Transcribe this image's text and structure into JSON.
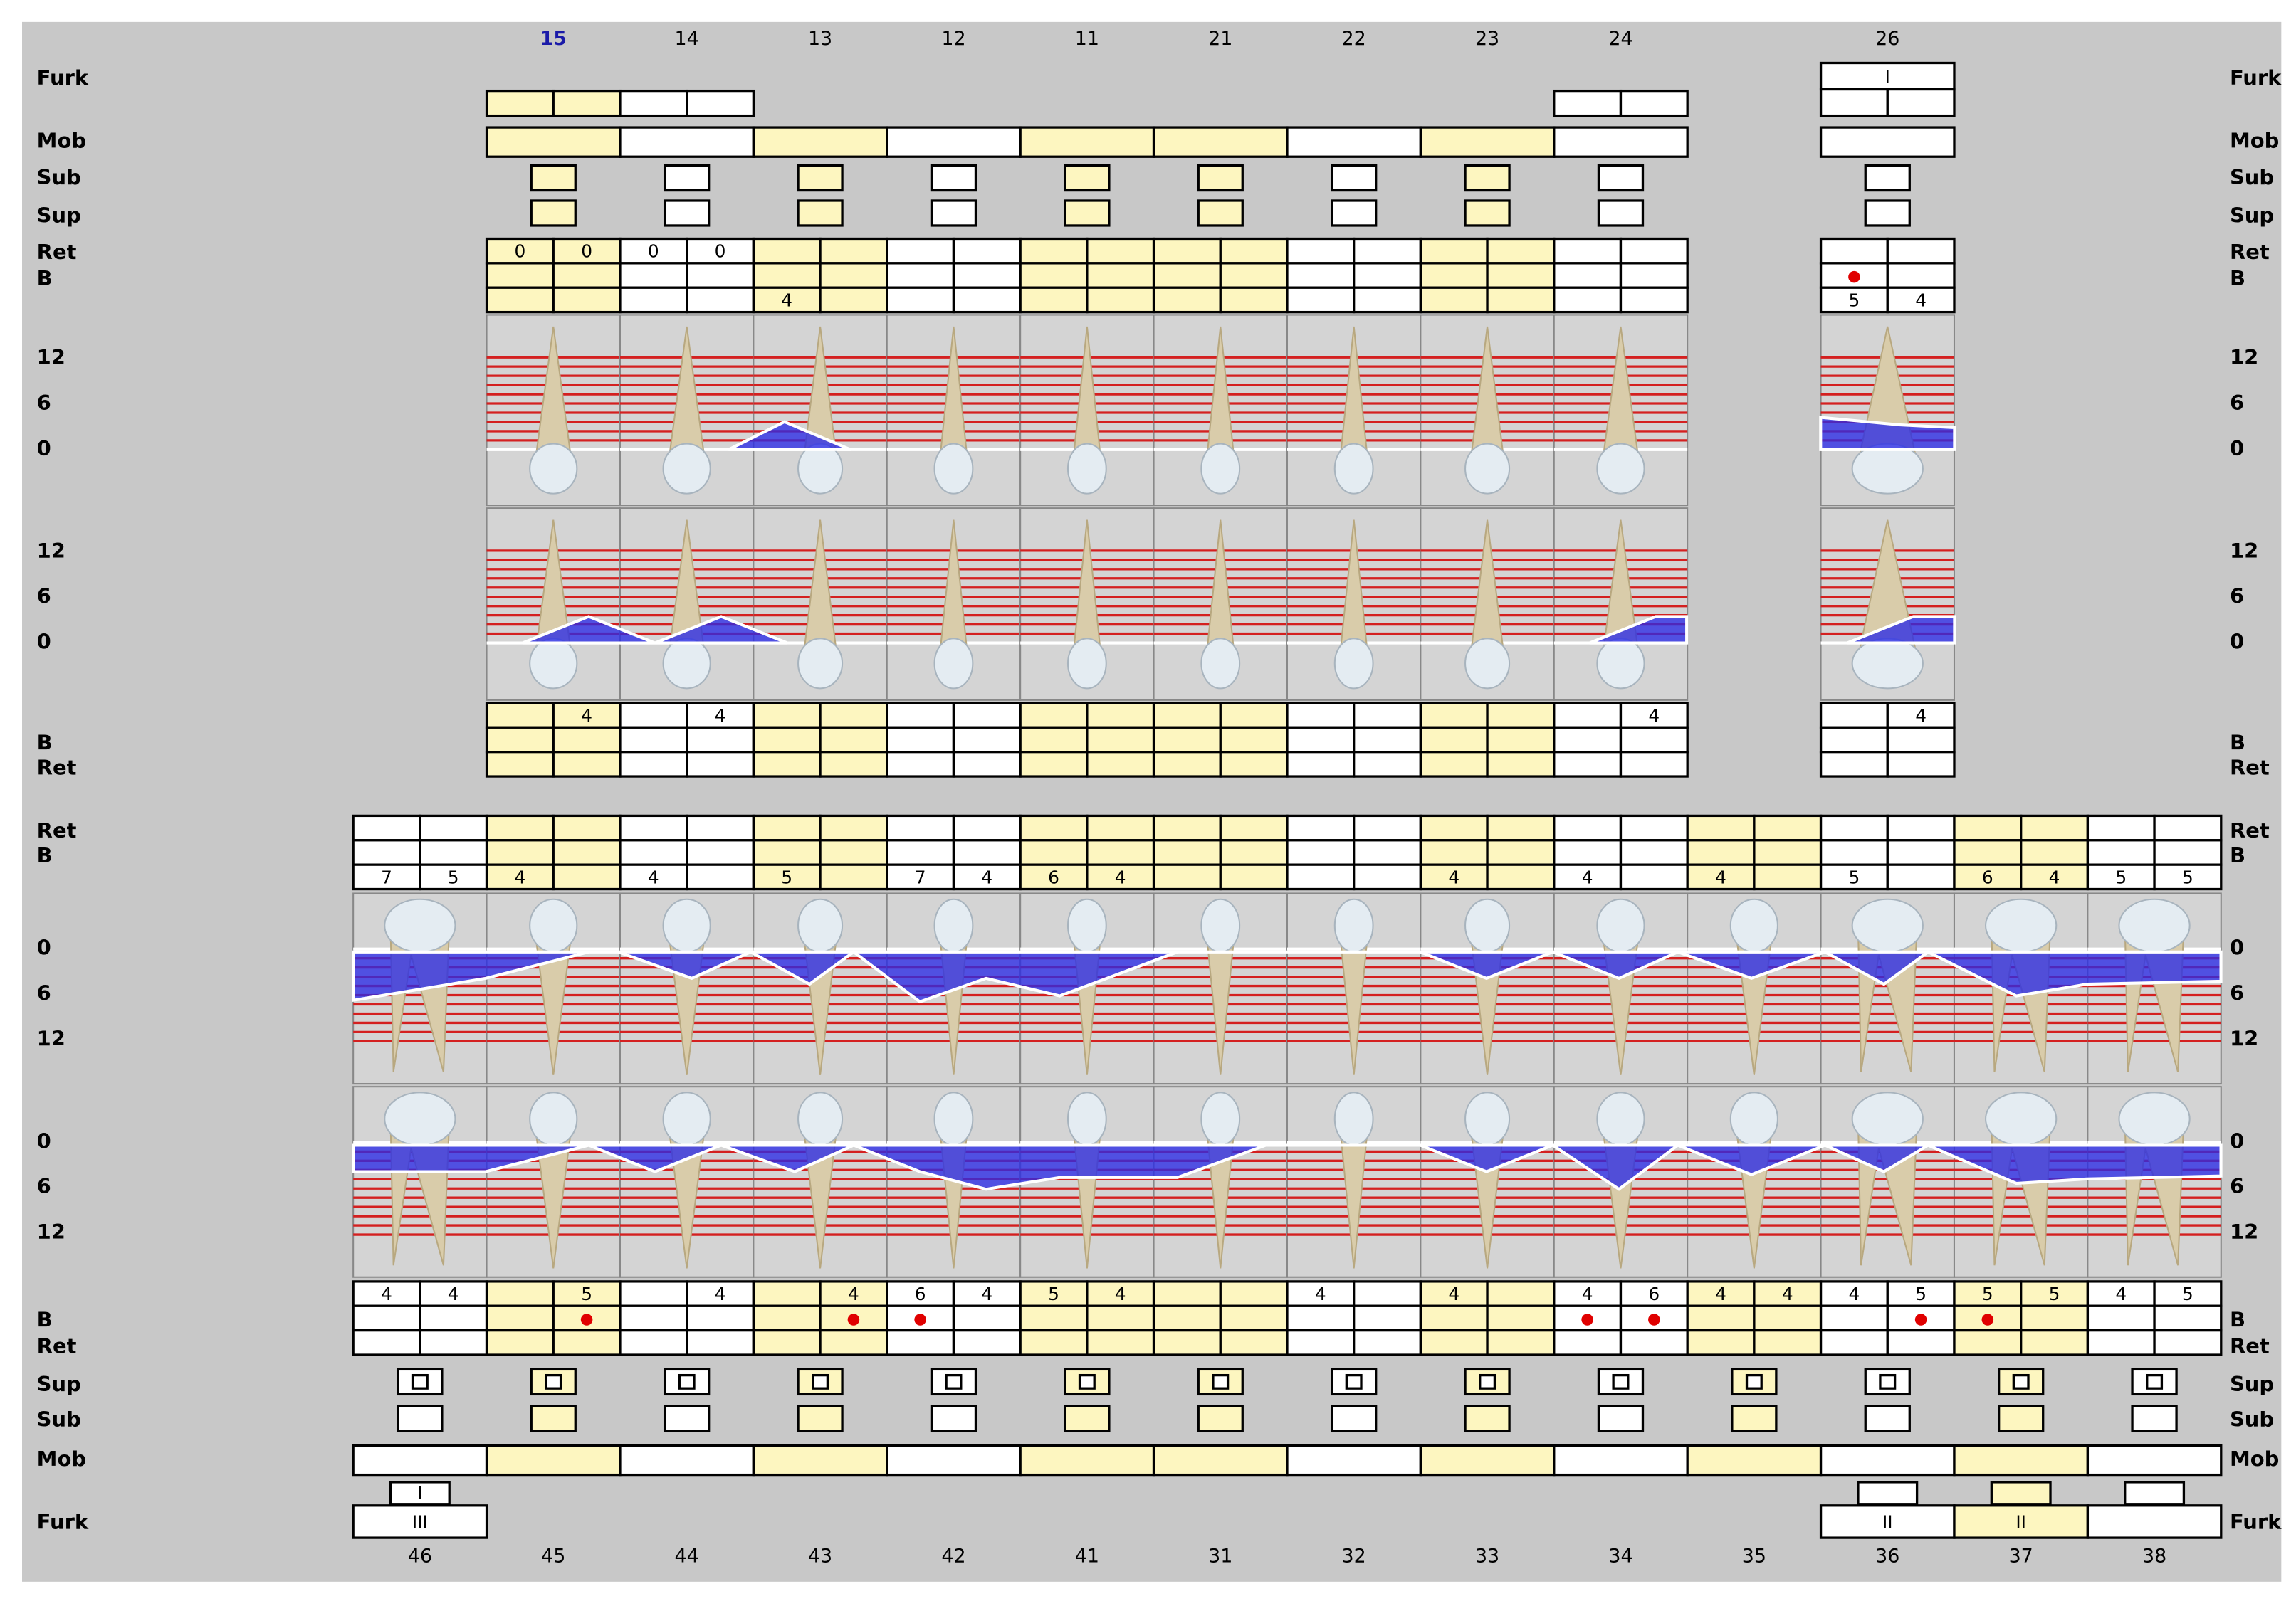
{
  "upper_labels": [
    "Furk",
    "Mob",
    "Sub",
    "Sup",
    "Ret",
    "B",
    "12",
    "6",
    "0",
    "12",
    "6",
    "0",
    "B",
    "Ret"
  ],
  "lower_labels": [
    "Ret",
    "B",
    "0",
    "6",
    "12",
    "0",
    "6",
    "12",
    "B",
    "Ret",
    "Sup",
    "Sub",
    "Mob",
    "Furk"
  ],
  "upper_teeth": [
    {
      "number": "15",
      "active": true,
      "highlight": true,
      "furk_boxes": true,
      "ret_top": [
        0,
        0
      ],
      "pd_bottom": [
        null,
        4
      ]
    },
    {
      "number": "14",
      "highlight": false,
      "furk_boxes": true,
      "ret_top": [
        0,
        0
      ],
      "pd_bottom": [
        null,
        4
      ]
    },
    {
      "number": "13",
      "highlight": true,
      "pd_top": [
        4,
        null
      ]
    },
    {
      "number": "12",
      "highlight": false
    },
    {
      "number": "11",
      "highlight": true
    },
    {
      "number": "21",
      "highlight": true
    },
    {
      "number": "22",
      "highlight": false
    },
    {
      "number": "23",
      "highlight": true
    },
    {
      "number": "24",
      "highlight": false,
      "furk_boxes": true,
      "pd_bottom": [
        null,
        4
      ]
    },
    null,
    {
      "number": "26",
      "highlight": false,
      "furk_label": "I",
      "bleed_top": [
        true,
        false
      ],
      "pd_top": [
        5,
        4
      ],
      "pd_bottom": [
        null,
        4
      ]
    }
  ],
  "lower_teeth": [
    {
      "number": "46",
      "highlight": false,
      "pd_top": [
        7,
        5
      ],
      "pd_bottom": [
        4,
        4
      ],
      "furk": [
        "I",
        "III"
      ]
    },
    {
      "number": "45",
      "highlight": true,
      "pd_top": [
        4,
        null
      ],
      "pd_bottom": [
        null,
        5
      ],
      "bleed_bottom": [
        false,
        true
      ]
    },
    {
      "number": "44",
      "highlight": false,
      "pd_top": [
        4,
        null
      ],
      "pd_bottom": [
        null,
        4
      ]
    },
    {
      "number": "43",
      "highlight": true,
      "pd_top": [
        5,
        null
      ],
      "pd_bottom": [
        null,
        4
      ],
      "bleed_bottom": [
        false,
        true
      ]
    },
    {
      "number": "42",
      "highlight": false,
      "pd_top": [
        7,
        4
      ],
      "pd_bottom": [
        6,
        4
      ],
      "bleed_bottom": [
        true,
        false
      ]
    },
    {
      "number": "41",
      "highlight": true,
      "pd_top": [
        6,
        4
      ],
      "pd_bottom": [
        5,
        4
      ]
    },
    {
      "number": "31",
      "highlight": true
    },
    {
      "number": "32",
      "highlight": false,
      "pd_bottom": [
        4,
        null
      ]
    },
    {
      "number": "33",
      "highlight": true,
      "pd_top": [
        4,
        null
      ],
      "pd_bottom": [
        4,
        null
      ]
    },
    {
      "number": "34",
      "highlight": false,
      "pd_top": [
        4,
        null
      ],
      "pd_bottom": [
        4,
        6
      ],
      "bleed_bottom": [
        true,
        true
      ]
    },
    {
      "number": "35",
      "highlight": true,
      "pd_top": [
        4,
        null
      ],
      "pd_bottom": [
        4,
        4
      ]
    },
    {
      "number": "36",
      "highlight": false,
      "pd_top": [
        5,
        null
      ],
      "pd_bottom": [
        4,
        5
      ],
      "bleed_bottom": [
        false,
        true
      ],
      "furk": [
        null,
        "II"
      ]
    },
    {
      "number": "37",
      "highlight": true,
      "pd_top": [
        6,
        4
      ],
      "pd_bottom": [
        5,
        5
      ],
      "bleed_bottom": [
        true,
        false
      ],
      "furk": [
        null,
        "II"
      ]
    },
    {
      "number": "38",
      "highlight": false,
      "pd_top": [
        5,
        5
      ],
      "pd_bottom": [
        4,
        5
      ],
      "furk": [
        null,
        null
      ]
    }
  ]
}
